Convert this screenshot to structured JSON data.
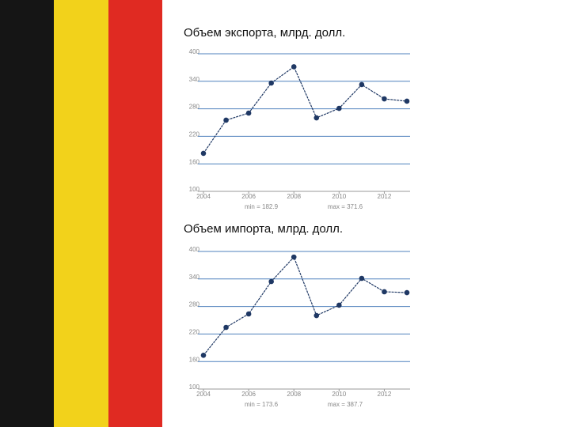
{
  "chart_data": [
    {
      "type": "line",
      "title": "Объем экспорта, млрд. долл.",
      "x": [
        2004,
        2005,
        2006,
        2007,
        2008,
        2009,
        2010,
        2011,
        2012,
        2013
      ],
      "series": [
        {
          "color": "#1f3864",
          "values": [
            182.9,
            255.2,
            270.7,
            336.2,
            371.6,
            260.3,
            281.0,
            332.8,
            301.7,
            296.6
          ]
        }
      ],
      "xlim": [
        2004,
        2013
      ],
      "xticks": [
        2004,
        2006,
        2008,
        2010,
        2012
      ],
      "ylim": [
        100,
        400
      ],
      "yticks": [
        400,
        340,
        280,
        220,
        160,
        100
      ],
      "grid": true,
      "annotations": [
        "min = 182.9",
        "max = 371.6"
      ]
    },
    {
      "type": "line",
      "title": "Объем импорта, млрд. долл.",
      "x": [
        2004,
        2005,
        2006,
        2007,
        2008,
        2009,
        2010,
        2011,
        2012,
        2013
      ],
      "series": [
        {
          "color": "#1f3864",
          "values": [
            173.6,
            234.5,
            263.8,
            334.5,
            387.7,
            260.3,
            282.8,
            341.4,
            312.1,
            310.3
          ]
        }
      ],
      "xlim": [
        2004,
        2013
      ],
      "xticks": [
        2004,
        2006,
        2008,
        2010,
        2012
      ],
      "ylim": [
        100,
        400
      ],
      "yticks": [
        400,
        340,
        280,
        220,
        160,
        100
      ],
      "grid": true,
      "annotations": [
        "min = 173.6",
        "max = 387.7"
      ]
    }
  ]
}
